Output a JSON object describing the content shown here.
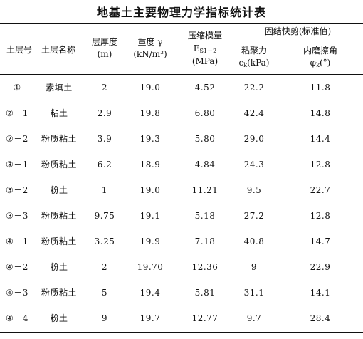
{
  "title": "地基土主要物理力学指标统计表",
  "headers": {
    "layer_no": "土层号",
    "layer_name": "土层名称",
    "thickness": "层厚度",
    "thickness_unit": "(m)",
    "unit_weight": "重度 γ",
    "unit_weight_unit": "(kN/m³)",
    "modulus": "压缩模量",
    "modulus_symbol": "E",
    "modulus_sub": "S1－2",
    "modulus_unit": "(MPa)",
    "shear_group": "固结快剪(标准值)",
    "cohesion": "粘聚力",
    "cohesion_symbol": "c",
    "cohesion_sub": "k",
    "cohesion_unit": "(kPa)",
    "friction": "内磨擦角",
    "friction_symbol": "φ",
    "friction_sub": "k",
    "friction_unit": "(°)"
  },
  "rows": [
    {
      "no": "①",
      "name": "素填土",
      "thickness": "2",
      "unit_weight": "19.0",
      "modulus": "4.52",
      "cohesion": "22.2",
      "friction": "11.8"
    },
    {
      "no": "②－1",
      "name": "粘土",
      "thickness": "2.9",
      "unit_weight": "19.8",
      "modulus": "6.80",
      "cohesion": "42.4",
      "friction": "14.8"
    },
    {
      "no": "②－2",
      "name": "粉质粘土",
      "thickness": "3.9",
      "unit_weight": "19.3",
      "modulus": "5.80",
      "cohesion": "29.0",
      "friction": "14.4"
    },
    {
      "no": "③－1",
      "name": "粉质粘土",
      "thickness": "6.2",
      "unit_weight": "18.9",
      "modulus": "4.84",
      "cohesion": "24.3",
      "friction": "12.8"
    },
    {
      "no": "③－2",
      "name": "粉土",
      "thickness": "1",
      "unit_weight": "19.0",
      "modulus": "11.21",
      "cohesion": "9.5",
      "friction": "22.7"
    },
    {
      "no": "③－3",
      "name": "粉质粘土",
      "thickness": "9.75",
      "unit_weight": "19.1",
      "modulus": "5.18",
      "cohesion": "27.2",
      "friction": "12.8"
    },
    {
      "no": "④－1",
      "name": "粉质粘土",
      "thickness": "3.25",
      "unit_weight": "19.9",
      "modulus": "7.18",
      "cohesion": "40.8",
      "friction": "14.7"
    },
    {
      "no": "④－2",
      "name": "粉土",
      "thickness": "2",
      "unit_weight": "19.70",
      "modulus": "12.36",
      "cohesion": "9",
      "friction": "22.9"
    },
    {
      "no": "④－3",
      "name": "粉质粘土",
      "thickness": "5",
      "unit_weight": "19.4",
      "modulus": "5.81",
      "cohesion": "31.1",
      "friction": "14.1"
    },
    {
      "no": "④－4",
      "name": "粉土",
      "thickness": "9",
      "unit_weight": "19.7",
      "modulus": "12.77",
      "cohesion": "9.7",
      "friction": "28.4"
    }
  ]
}
